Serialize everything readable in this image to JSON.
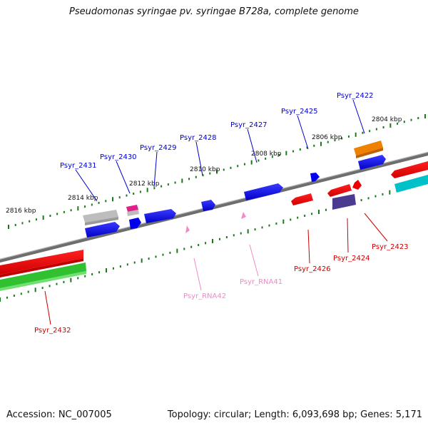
{
  "header": {
    "title": "Pseudomonas syringae pv. syringae B728a, complete genome"
  },
  "footer": {
    "accession": "Accession: NC_007005",
    "summary": "Topology: circular; Length: 6,093,698 bp; Genes: 5,171"
  },
  "ticks": [
    {
      "label": "2816 kbp"
    },
    {
      "label": "2814 kbp"
    },
    {
      "label": "2812 kbp"
    },
    {
      "label": "2810 kbp"
    },
    {
      "label": "2808 kbp"
    },
    {
      "label": "2806 kbp"
    },
    {
      "label": "2804 kbp"
    }
  ],
  "genes_top": [
    {
      "name": "Psyr_2431"
    },
    {
      "name": "Psyr_2430"
    },
    {
      "name": "Psyr_2429"
    },
    {
      "name": "Psyr_2428"
    },
    {
      "name": "Psyr_2427"
    },
    {
      "name": "Psyr_2425"
    },
    {
      "name": "Psyr_2422"
    }
  ],
  "genes_bottom": [
    {
      "name": "Psyr_2432"
    },
    {
      "name": "Psyr_RNA42"
    },
    {
      "name": "Psyr_RNA41"
    },
    {
      "name": "Psyr_2426"
    },
    {
      "name": "Psyr_2424"
    },
    {
      "name": "Psyr_2423"
    }
  ],
  "colors": {
    "forward_gene": "#0000ee",
    "reverse_gene": "#ee0000",
    "rna": "#f08ac8",
    "backbone": "#808080",
    "tick": "#1a7a1a",
    "rrna": "#30c030",
    "pseudo": "#bbbbbb",
    "orange": "#f08000",
    "cyan": "#00c0c8",
    "purple": "#4a3a90",
    "magenta": "#e0208a"
  }
}
